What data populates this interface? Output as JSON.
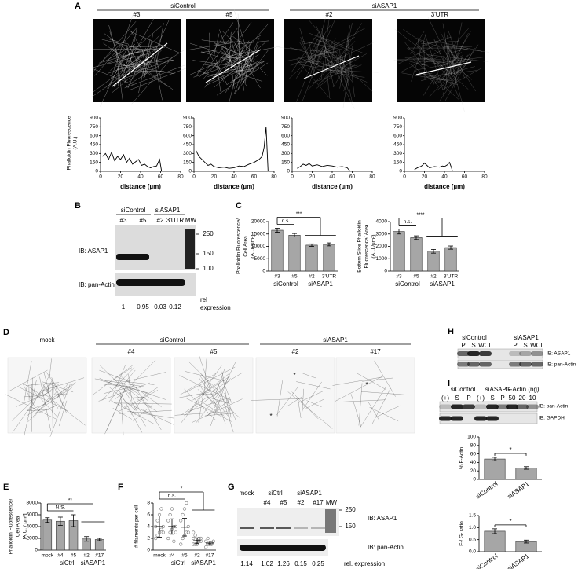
{
  "A": {
    "letter": "A",
    "groups": [
      {
        "label": "siControl",
        "samples": [
          "#3",
          "#5"
        ]
      },
      {
        "label": "siASAP1",
        "samples": [
          "#2",
          "3'UTR"
        ]
      }
    ],
    "profile_chart": {
      "type": "line",
      "ylabel": [
        "Phalloidin Fluorescence",
        "(A.U.)"
      ],
      "xlabel": "distance (µm)",
      "xlim": [
        0,
        80
      ],
      "xticks": [
        0,
        20,
        40,
        60,
        80
      ],
      "ylim": [
        0,
        900
      ],
      "yticks": [
        0,
        150,
        300,
        450,
        600,
        750,
        900
      ],
      "color": "#000000",
      "profiles": [
        {
          "x": [
            2,
            5,
            8,
            11,
            14,
            17,
            20,
            23,
            26,
            29,
            32,
            35,
            38,
            41,
            44,
            47,
            50,
            53,
            56,
            59,
            61
          ],
          "values": [
            250,
            300,
            200,
            320,
            180,
            250,
            200,
            280,
            150,
            220,
            120,
            160,
            200,
            100,
            120,
            80,
            60,
            80,
            90,
            200,
            0
          ]
        },
        {
          "x": [
            2,
            5,
            8,
            11,
            14,
            17,
            20,
            25,
            30,
            35,
            40,
            45,
            50,
            55,
            60,
            65,
            68,
            70,
            72,
            74
          ],
          "values": [
            350,
            250,
            200,
            150,
            100,
            120,
            80,
            60,
            70,
            50,
            60,
            90,
            80,
            120,
            150,
            200,
            250,
            400,
            750,
            0
          ]
        },
        {
          "x": [
            5,
            8,
            11,
            14,
            17,
            20,
            25,
            30,
            35,
            40,
            45,
            50,
            55,
            58
          ],
          "values": [
            50,
            80,
            120,
            100,
            130,
            90,
            110,
            80,
            100,
            90,
            70,
            80,
            60,
            0
          ]
        },
        {
          "x": [
            10,
            13,
            16,
            18,
            20,
            25,
            30,
            35,
            38,
            40,
            43,
            45,
            47,
            48
          ],
          "values": [
            30,
            60,
            80,
            100,
            140,
            60,
            80,
            70,
            90,
            80,
            110,
            150,
            60,
            0
          ]
        }
      ]
    }
  },
  "B": {
    "letter": "B",
    "groups": [
      {
        "label": "siControl",
        "lanes": [
          "#3",
          "#5"
        ]
      },
      {
        "label": "siASAP1",
        "lanes": [
          "#2",
          "3'UTR"
        ]
      }
    ],
    "mw_label": "MW",
    "mw_markers": [
      250,
      150,
      100
    ],
    "blots": [
      "IB: ASAP1",
      "IB: pan-Actin"
    ],
    "rel_expression": [
      1,
      0.95,
      0.03,
      0.12
    ],
    "rel_label": [
      "rel",
      "expression"
    ]
  },
  "C": {
    "letter": "C",
    "charts": [
      {
        "type": "bar",
        "ylabel": [
          "Phalloidin Fluorescence/",
          "Cell Area",
          "(A.U./µm²)"
        ],
        "groups": [
          {
            "label": "siControl",
            "categories": [
              "#3",
              "#5"
            ]
          },
          {
            "label": "siASAP1",
            "categories": [
              "#2",
              "3'UTR"
            ]
          }
        ],
        "values": [
          16500,
          14500,
          10500,
          10800
        ],
        "errors": [
          800,
          700,
          500,
          600
        ],
        "ylim": [
          0,
          20000
        ],
        "yticks": [
          0,
          5000,
          10000,
          15000,
          20000
        ],
        "color": "#a6a6a6",
        "significance": [
          "n.s.",
          "***"
        ]
      },
      {
        "type": "bar",
        "ylabel": [
          "Bottom Slice Phalloidin",
          "Fluorescence/ Area",
          "(A.U./µm²)"
        ],
        "groups": [
          {
            "label": "siControl",
            "categories": [
              "#3",
              "#5"
            ]
          },
          {
            "label": "siASAP1",
            "categories": [
              "#2",
              "3'UTR"
            ]
          }
        ],
        "values": [
          3200,
          2700,
          1600,
          1900
        ],
        "errors": [
          200,
          150,
          150,
          130
        ],
        "ylim": [
          0,
          4000
        ],
        "yticks": [
          0,
          1000,
          2000,
          3000,
          4000
        ],
        "color": "#a6a6a6",
        "significance": [
          "n.s.",
          "****"
        ]
      }
    ]
  },
  "D": {
    "letter": "D",
    "columns": [
      {
        "label": "mock"
      },
      {
        "label": "siControl",
        "samples": [
          "#4",
          "#5"
        ]
      },
      {
        "label": "siASAP1",
        "samples": [
          "#2",
          "#17"
        ]
      }
    ],
    "annotations": [
      "*",
      "*",
      "*"
    ]
  },
  "E": {
    "letter": "E",
    "chart": {
      "type": "bar",
      "ylabel": [
        "Phalloidin Fluorescence/",
        "Cell Area",
        "[A.U. / µm²]"
      ],
      "groups": [
        {
          "categories": [
            "mock"
          ]
        },
        {
          "label": "siCtrl",
          "categories": [
            "#4",
            "#5"
          ]
        },
        {
          "label": "siASAP1",
          "categories": [
            "#2",
            "#17"
          ]
        }
      ],
      "values": [
        5100,
        4900,
        5000,
        1900,
        1800
      ],
      "errors": [
        400,
        700,
        1000,
        400,
        200
      ],
      "ylim": [
        0,
        8000
      ],
      "yticks": [
        0,
        2000,
        4000,
        6000,
        8000
      ],
      "color": "#a6a6a6",
      "significance": [
        "N.S.",
        "**"
      ]
    }
  },
  "F": {
    "letter": "F",
    "chart": {
      "type": "dot",
      "ylabel": [
        "# filaments per cell"
      ],
      "groups": [
        {
          "categories": [
            "mock"
          ]
        },
        {
          "label": "siCtrl",
          "categories": [
            "#4",
            "#5"
          ]
        },
        {
          "label": "siASAP1",
          "categories": [
            "#2",
            "#17"
          ]
        }
      ],
      "values": [
        4,
        4,
        3.9,
        1.6,
        1.2
      ],
      "errors": [
        1.8,
        1.3,
        1.5,
        0.5,
        0.3
      ],
      "points": [
        [
          2,
          2.5,
          3,
          3.5,
          4,
          4,
          5,
          6,
          7,
          3
        ],
        [
          2,
          3,
          3.5,
          4,
          4,
          5,
          6,
          7,
          1.5,
          3
        ],
        [
          1,
          2,
          2.5,
          3,
          4,
          5,
          6,
          7,
          8,
          3
        ],
        [
          1,
          1,
          1.5,
          1.5,
          2,
          2,
          2.5,
          1,
          2,
          1.5,
          3
        ],
        [
          0.5,
          1,
          1,
          1,
          1.5,
          1.5,
          2,
          1,
          1.2
        ]
      ],
      "ylim": [
        0,
        8
      ],
      "yticks": [
        0,
        2,
        4,
        6,
        8
      ],
      "color": "#a6a6a6",
      "significance": [
        "n.s.",
        "*"
      ]
    }
  },
  "G": {
    "letter": "G",
    "columns": [
      {
        "label": "mock"
      },
      {
        "label": "siCtrl",
        "lanes": [
          "#4",
          "#5"
        ]
      },
      {
        "label": "siASAP1",
        "lanes": [
          "#2",
          "#17"
        ]
      }
    ],
    "mw_label": "MW",
    "mw_markers": [
      250,
      150
    ],
    "blots": [
      "IB: ASAP1",
      "IB: pan-Actin"
    ],
    "rel_expression": [
      1.14,
      1.02,
      1.26,
      0.15,
      0.25
    ],
    "rel_label": "rel. expression"
  },
  "H": {
    "letter": "H",
    "groups": [
      {
        "label": "siControl",
        "lanes": [
          "P",
          "S",
          "WCL"
        ]
      },
      {
        "label": "siASAP1",
        "lanes": [
          "P",
          "S",
          "WCL"
        ]
      }
    ],
    "blots": [
      "IB: ASAP1",
      "IB: pan-Actin"
    ]
  },
  "I": {
    "letter": "I",
    "groups": [
      {
        "lanes": [
          "(+)"
        ]
      },
      {
        "label": "siControl",
        "lanes": [
          "S",
          "P"
        ]
      },
      {
        "lanes": [
          "(+)"
        ]
      },
      {
        "label": "siASAP1",
        "lanes": [
          "S",
          "P"
        ]
      },
      {
        "label": "G-Actin (ng)",
        "lanes": [
          50,
          20,
          10
        ]
      }
    ],
    "blots": [
      "IB: pan-Actin",
      "IB: GAPDH"
    ],
    "charts": [
      {
        "type": "bar",
        "ylabel": [
          "% F-Actin"
        ],
        "groups": [
          {
            "categories": [
              "siControl",
              "siASAP1"
            ]
          }
        ],
        "values": [
          48,
          27
        ],
        "errors": [
          4,
          3
        ],
        "ylim": [
          0,
          100
        ],
        "yticks": [
          0,
          20,
          40,
          60,
          80,
          100
        ],
        "color": "#a6a6a6",
        "significance": [
          "*"
        ]
      },
      {
        "type": "bar",
        "ylabel": [
          "F-/ G- ratio"
        ],
        "groups": [
          {
            "categories": [
              "siControl",
              "siASAP1"
            ]
          }
        ],
        "values": [
          0.85,
          0.42
        ],
        "errors": [
          0.1,
          0.06
        ],
        "ylim": [
          0,
          1.5
        ],
        "yticks": [
          {
            "value": 0,
            "label": "0.0"
          },
          {
            "value": 0.5,
            "label": "0.5"
          },
          {
            "value": 1,
            "label": "1.0"
          },
          {
            "value": 1.5,
            "label": "1.5"
          }
        ],
        "color": "#a6a6a6",
        "significance": [
          "*"
        ]
      }
    ]
  }
}
